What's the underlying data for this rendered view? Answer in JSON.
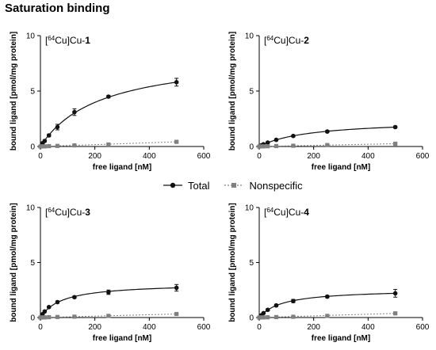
{
  "title": "Saturation binding",
  "legend": {
    "total": "Total",
    "nonspecific": "Nonspecific"
  },
  "colors": {
    "total": "#111111",
    "nonspecific": "#808080"
  },
  "chart_data": [
    {
      "type": "scatter",
      "compound_prefix": "[",
      "compound_isotope": "64",
      "compound_mid": "Cu]Cu-",
      "compound_number": "1",
      "xlabel": "free ligand [nM]",
      "ylabel": "bound ligand [pmol/mg protein]",
      "xlim": [
        0,
        600
      ],
      "ylim": [
        0,
        10
      ],
      "xticks": [
        "0",
        "200",
        "400",
        "600"
      ],
      "yticks": [
        "0",
        "5",
        "10"
      ],
      "grid": false,
      "series": [
        {
          "name": "Total",
          "x": [
            0,
            7.8,
            15.6,
            31.3,
            62.5,
            125,
            250,
            500
          ],
          "y": [
            0,
            0.3,
            0.5,
            1.0,
            1.75,
            3.1,
            4.5,
            5.8
          ],
          "err": [
            0,
            0.05,
            0.08,
            0.12,
            0.25,
            0.3,
            0.1,
            0.35
          ]
        },
        {
          "name": "Nonspecific",
          "x": [
            0,
            7.8,
            15.6,
            31.3,
            62.5,
            125,
            250,
            500
          ],
          "y": [
            0,
            0.01,
            0.01,
            0.03,
            0.05,
            0.1,
            0.18,
            0.42
          ],
          "err": [
            0,
            0,
            0,
            0,
            0,
            0.02,
            0.03,
            0.05
          ]
        }
      ]
    },
    {
      "type": "scatter",
      "compound_prefix": "[",
      "compound_isotope": "64",
      "compound_mid": "Cu]Cu-",
      "compound_number": "2",
      "xlabel": "free ligand [nM]",
      "ylabel": "bound ligand [pmol/mg protein]",
      "xlim": [
        0,
        600
      ],
      "ylim": [
        0,
        10
      ],
      "xticks": [
        "0",
        "200",
        "400",
        "600"
      ],
      "yticks": [
        "0",
        "5",
        "10"
      ],
      "grid": false,
      "series": [
        {
          "name": "Total",
          "x": [
            0,
            7.8,
            15.6,
            31.3,
            62.5,
            125,
            250,
            500
          ],
          "y": [
            0,
            0.1,
            0.2,
            0.35,
            0.6,
            0.95,
            1.35,
            1.75
          ],
          "err": [
            0,
            0.02,
            0.03,
            0.05,
            0.05,
            0.08,
            0.1,
            0.1
          ]
        },
        {
          "name": "Nonspecific",
          "x": [
            0,
            7.8,
            15.6,
            31.3,
            62.5,
            125,
            250,
            500
          ],
          "y": [
            0,
            0.01,
            0.01,
            0.02,
            0.04,
            0.07,
            0.13,
            0.25
          ],
          "err": [
            0,
            0,
            0,
            0,
            0,
            0.01,
            0.02,
            0.03
          ]
        }
      ]
    },
    {
      "type": "scatter",
      "compound_prefix": "[",
      "compound_isotope": "64",
      "compound_mid": "Cu]Cu-",
      "compound_number": "3",
      "xlabel": "free ligand [nM]",
      "ylabel": "bound ligand [pmol/mg protein]",
      "xlim": [
        0,
        600
      ],
      "ylim": [
        0,
        10
      ],
      "xticks": [
        "0",
        "200",
        "400",
        "600"
      ],
      "yticks": [
        "0",
        "5",
        "10"
      ],
      "grid": false,
      "series": [
        {
          "name": "Total",
          "x": [
            0,
            7.8,
            15.6,
            31.3,
            62.5,
            125,
            250,
            500
          ],
          "y": [
            0,
            0.3,
            0.55,
            0.95,
            1.4,
            1.85,
            2.3,
            2.7
          ],
          "err": [
            0,
            0.05,
            0.05,
            0.08,
            0.1,
            0.1,
            0.2,
            0.3
          ]
        },
        {
          "name": "Nonspecific",
          "x": [
            0,
            7.8,
            15.6,
            31.3,
            62.5,
            125,
            250,
            500
          ],
          "y": [
            0,
            0.01,
            0.01,
            0.03,
            0.05,
            0.08,
            0.15,
            0.32
          ],
          "err": [
            0,
            0,
            0,
            0,
            0,
            0.02,
            0.03,
            0.04
          ]
        }
      ]
    },
    {
      "type": "scatter",
      "compound_prefix": "[",
      "compound_isotope": "64",
      "compound_mid": "Cu]Cu-",
      "compound_number": "4",
      "xlabel": "free ligand [nM]",
      "ylabel": "bound ligand [pmol/mg protein]",
      "xlim": [
        0,
        600
      ],
      "ylim": [
        0,
        10
      ],
      "xticks": [
        "0",
        "200",
        "400",
        "600"
      ],
      "yticks": [
        "0",
        "5",
        "10"
      ],
      "grid": false,
      "series": [
        {
          "name": "Total",
          "x": [
            0,
            7.8,
            15.6,
            31.3,
            62.5,
            125,
            250,
            500
          ],
          "y": [
            0,
            0.2,
            0.4,
            0.7,
            1.1,
            1.5,
            1.9,
            2.2
          ],
          "err": [
            0,
            0.04,
            0.05,
            0.08,
            0.1,
            0.15,
            0.1,
            0.35
          ]
        },
        {
          "name": "Nonspecific",
          "x": [
            0,
            7.8,
            15.6,
            31.3,
            62.5,
            125,
            250,
            500
          ],
          "y": [
            0,
            0.01,
            0.01,
            0.02,
            0.04,
            0.07,
            0.15,
            0.38
          ],
          "err": [
            0,
            0,
            0,
            0,
            0,
            0.02,
            0.03,
            0.04
          ]
        }
      ]
    }
  ]
}
